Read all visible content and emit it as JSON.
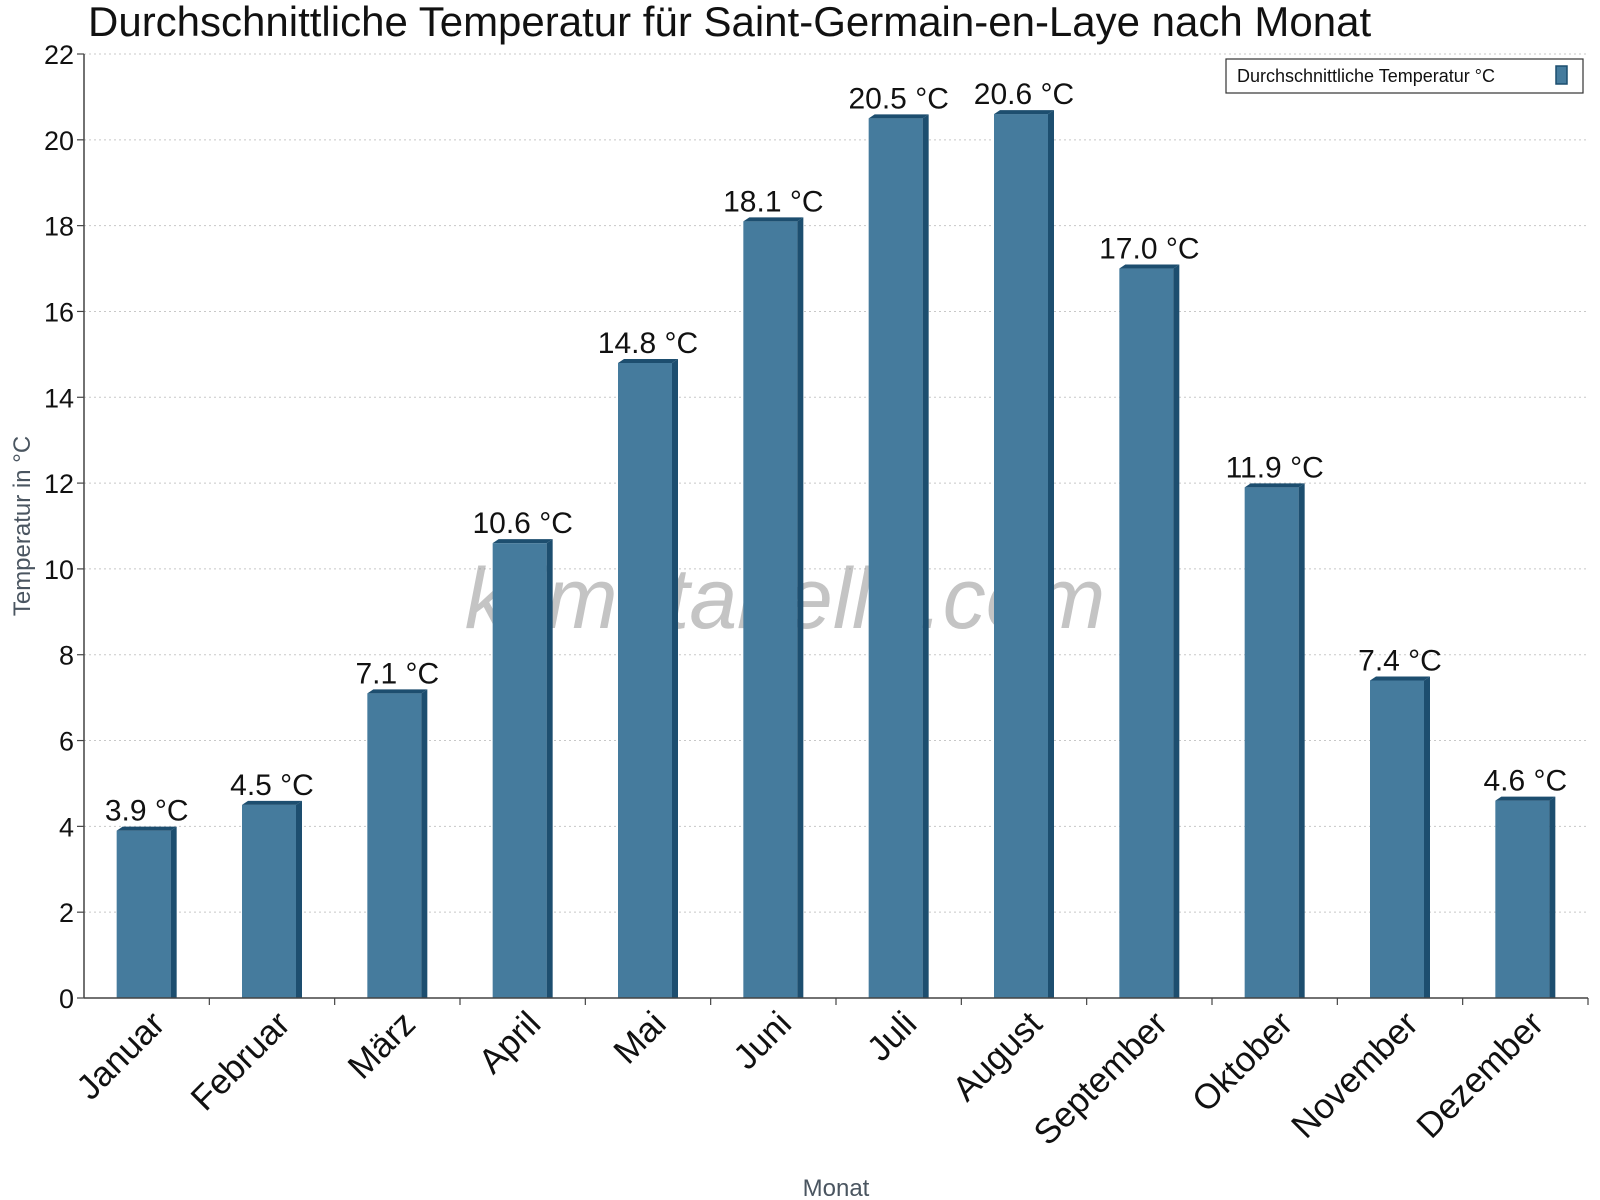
{
  "chart_data": {
    "type": "bar",
    "title": "Durchschnittliche Temperatur für Saint-Germain-en-Laye nach Monat",
    "xlabel": "Monat",
    "ylabel": "Temperatur in °C",
    "categories": [
      "Januar",
      "Februar",
      "März",
      "April",
      "Mai",
      "Juni",
      "Juli",
      "August",
      "September",
      "Oktober",
      "November",
      "Dezember"
    ],
    "series": [
      {
        "name": "Durchschnittliche Temperatur °C",
        "values": [
          3.9,
          4.5,
          7.1,
          10.6,
          14.8,
          18.1,
          20.5,
          20.6,
          17.0,
          11.9,
          7.4,
          4.6
        ],
        "labels": [
          "3.9 °C",
          "4.5 °C",
          "7.1 °C",
          "10.6 °C",
          "14.8 °C",
          "18.1 °C",
          "20.5 °C",
          "20.6 °C",
          "17.0 °C",
          "11.9 °C",
          "7.4 °C",
          "4.6 °C"
        ]
      }
    ],
    "ylim": [
      0,
      22
    ],
    "yticks": [
      0,
      2,
      4,
      6,
      8,
      10,
      12,
      14,
      16,
      18,
      20,
      22
    ],
    "grid": true,
    "legend_position": "top-right",
    "colors": {
      "bar": "#457b9d",
      "bar_top": "#1d4e6f",
      "bar_side": "#1d4e6f"
    }
  },
  "watermark": "klimatabelle.com"
}
